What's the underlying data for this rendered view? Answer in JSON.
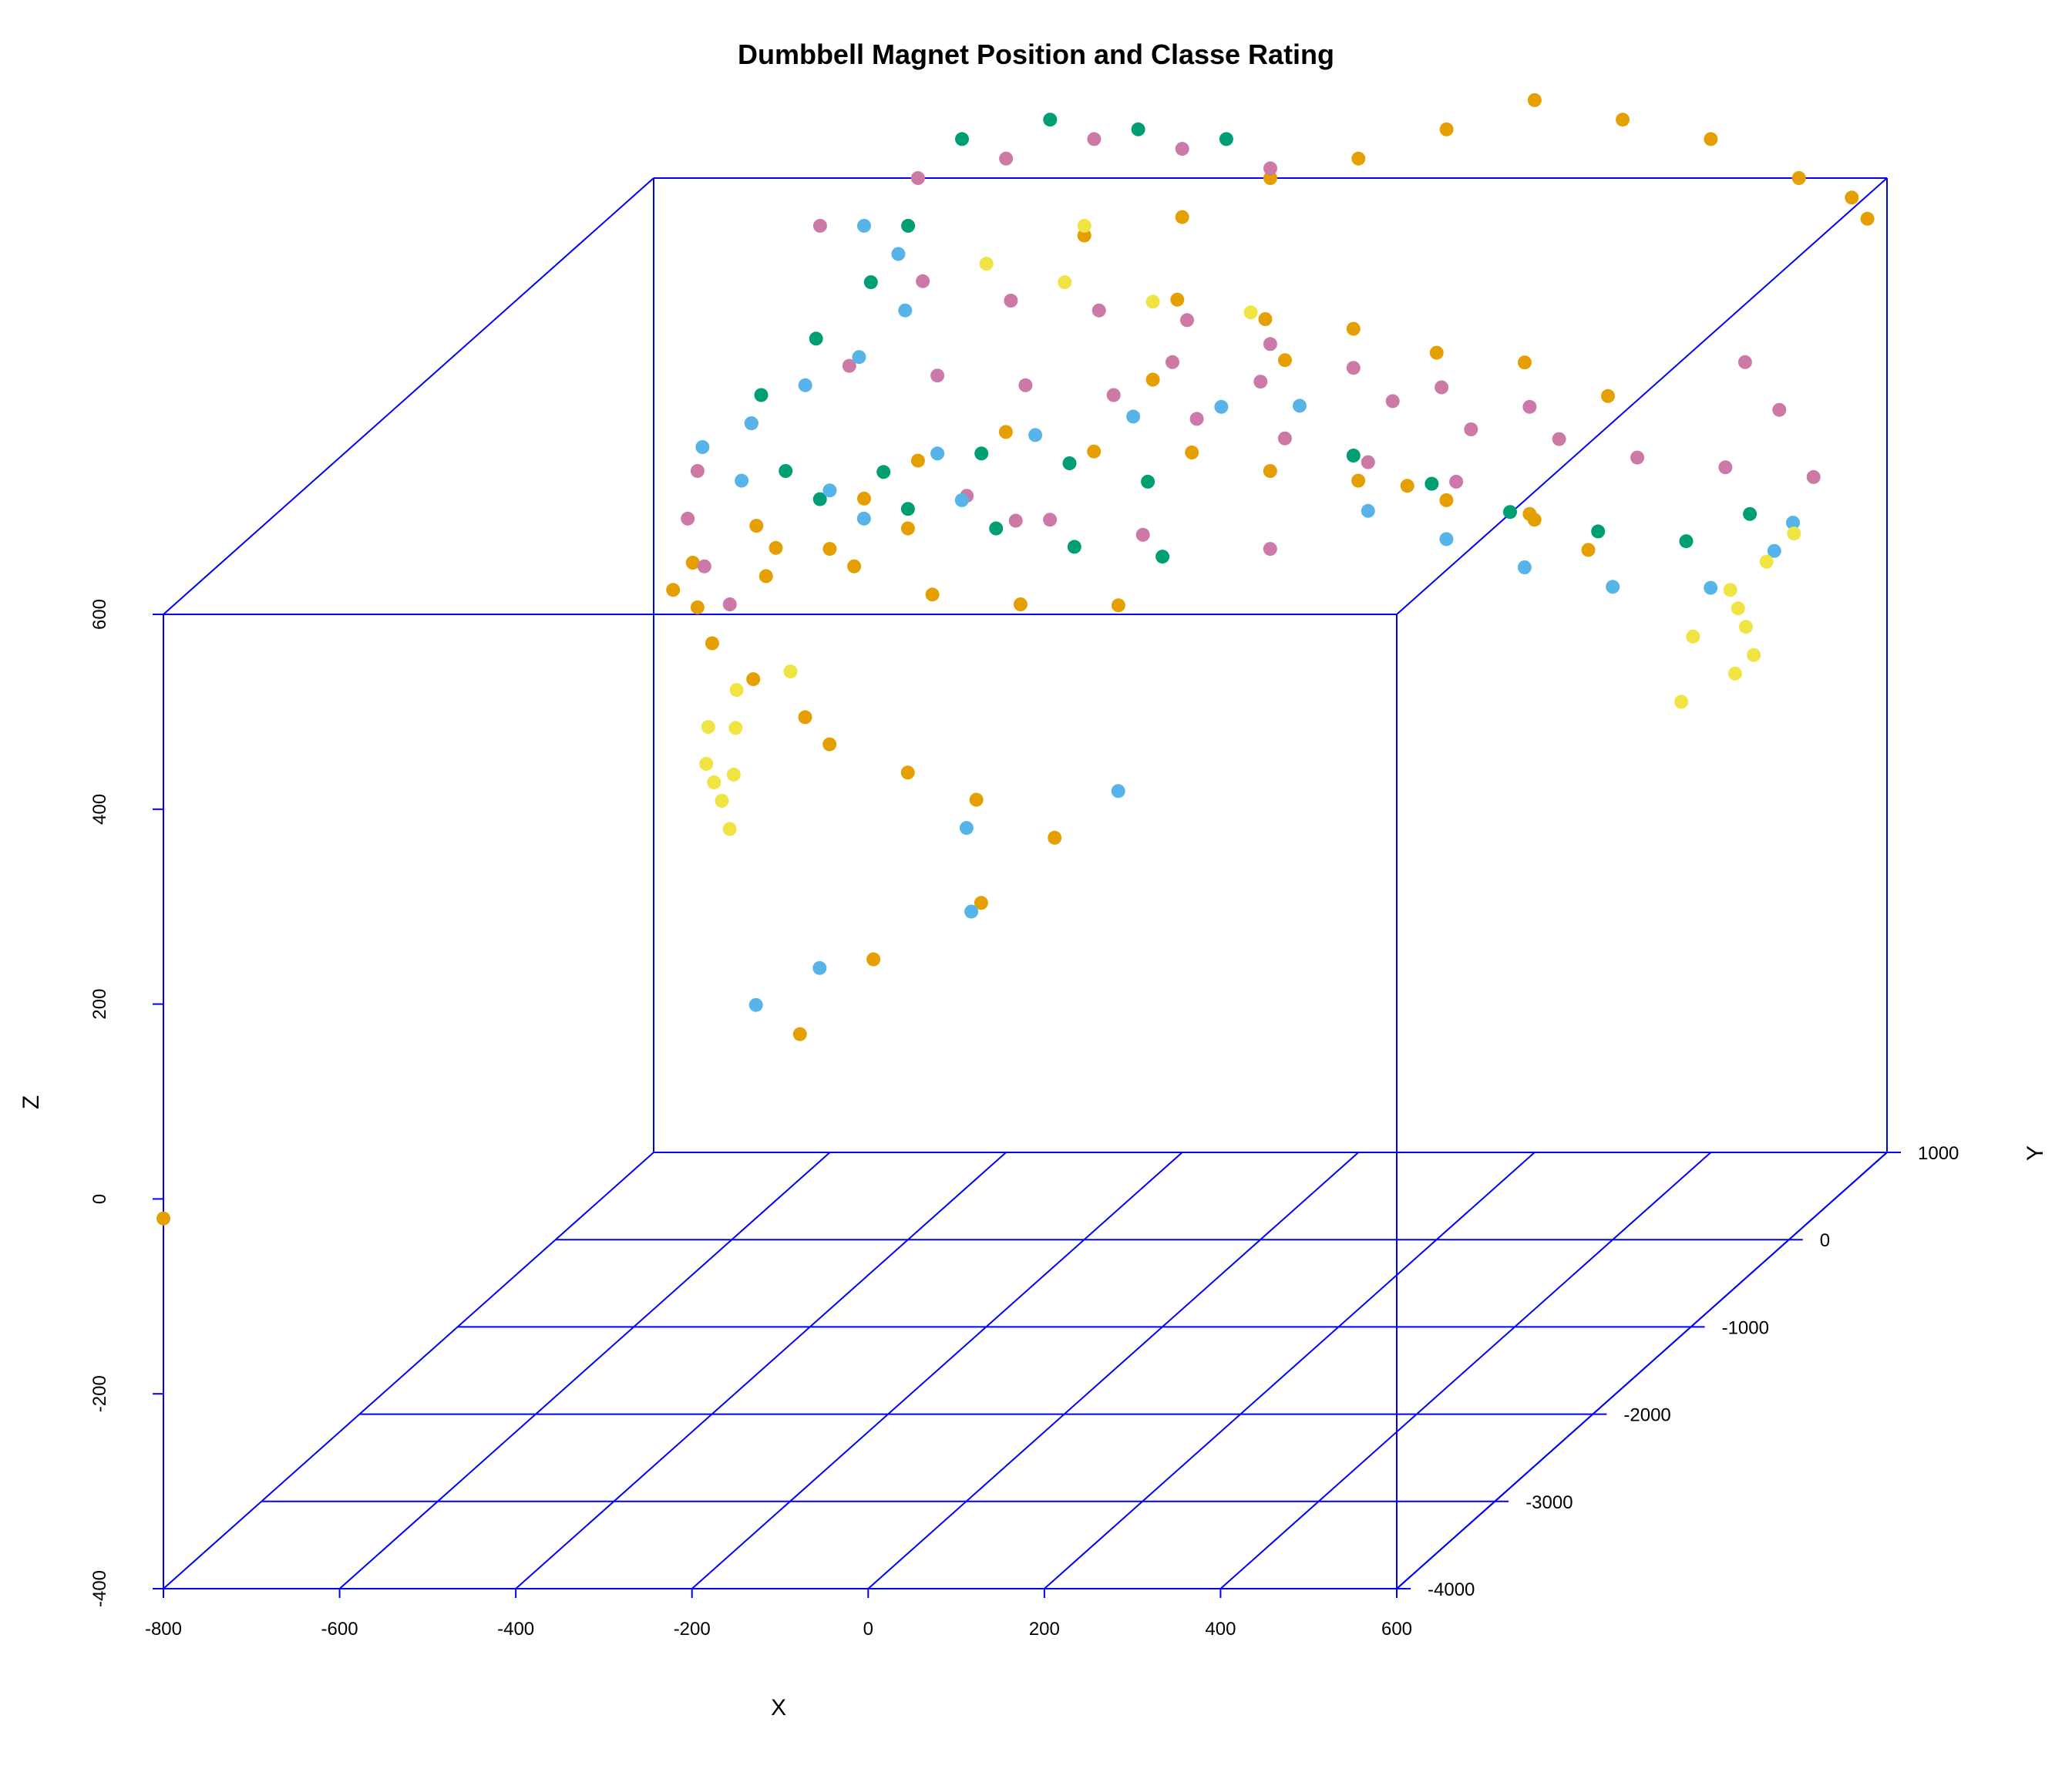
{
  "chart_data": {
    "type": "scatter",
    "title": "Dumbbell Magnet Position and Classe Rating",
    "xlabel": "X",
    "ylabel": "Y",
    "zlabel": "Z",
    "projection": "3d",
    "box_color": "#0000ff",
    "xlim": [
      -800,
      600
    ],
    "ylim": [
      -4000,
      1000
    ],
    "zlim": [
      -400,
      600
    ],
    "x_ticks": [
      "-800",
      "-600",
      "-400",
      "-200",
      "0",
      "200",
      "400",
      "600"
    ],
    "y_ticks": [
      "1000",
      "0",
      "-1000",
      "-2000",
      "-3000",
      "-4000"
    ],
    "z_ticks": [
      "600",
      "400",
      "200",
      "0",
      "-200",
      "-400"
    ],
    "series": [
      {
        "color": "#E69F00",
        "points": [
          [
            -100,
            1000,
            600
          ],
          [
            0,
            1000,
            620
          ],
          [
            100,
            1000,
            650
          ],
          [
            200,
            1000,
            680
          ],
          [
            300,
            1000,
            660
          ],
          [
            400,
            1000,
            640
          ],
          [
            500,
            1000,
            600
          ],
          [
            560,
            1000,
            580
          ],
          [
            580,
            980,
            560
          ],
          [
            -200,
            1000,
            560
          ],
          [
            -300,
            900,
            550
          ],
          [
            -150,
            500,
            520
          ],
          [
            -50,
            500,
            500
          ],
          [
            50,
            500,
            490
          ],
          [
            150,
            450,
            470
          ],
          [
            250,
            450,
            460
          ],
          [
            350,
            400,
            430
          ],
          [
            -300,
            100,
            420
          ],
          [
            -200,
            100,
            400
          ],
          [
            -100,
            200,
            390
          ],
          [
            0,
            100,
            380
          ],
          [
            100,
            100,
            370
          ],
          [
            200,
            100,
            350
          ],
          [
            300,
            100,
            330
          ],
          [
            -400,
            0,
            330
          ],
          [
            -500,
            100,
            300
          ],
          [
            -550,
            0,
            310
          ],
          [
            -550,
            -100,
            290
          ],
          [
            -450,
            -100,
            300
          ],
          [
            -350,
            -200,
            280
          ],
          [
            -250,
            -200,
            270
          ],
          [
            -150,
            -100,
            260
          ],
          [
            -500,
            1000,
            310
          ],
          [
            -550,
            900,
            280
          ],
          [
            -650,
            700,
            270
          ],
          [
            -700,
            500,
            250
          ],
          [
            -700,
            300,
            240
          ],
          [
            -650,
            100,
            240
          ],
          [
            -600,
            -200,
            230
          ],
          [
            -520,
            -500,
            220
          ],
          [
            -450,
            -600,
            190
          ],
          [
            -400,
            -800,
            180
          ],
          [
            -300,
            -900,
            160
          ],
          [
            -200,
            -1100,
            150
          ],
          [
            -100,
            -1200,
            120
          ],
          [
            -150,
            -1500,
            80
          ],
          [
            -250,
            -1700,
            40
          ],
          [
            -300,
            -2000,
            -10
          ],
          [
            100,
            600,
            320
          ],
          [
            250,
            500,
            300
          ],
          [
            350,
            200,
            290
          ],
          [
            -200,
            700,
            420
          ],
          [
            -50,
            700,
            440
          ],
          [
            -800,
            -4000,
            -20
          ]
        ]
      },
      {
        "color": "#CC79A7",
        "points": [
          [
            -500,
            1000,
            600
          ],
          [
            -400,
            1000,
            620
          ],
          [
            -300,
            1000,
            640
          ],
          [
            -200,
            1000,
            630
          ],
          [
            -100,
            1000,
            610
          ],
          [
            -600,
            900,
            560
          ],
          [
            -450,
            600,
            530
          ],
          [
            -350,
            600,
            510
          ],
          [
            -250,
            600,
            500
          ],
          [
            -150,
            600,
            490
          ],
          [
            -50,
            550,
            470
          ],
          [
            50,
            500,
            450
          ],
          [
            150,
            500,
            430
          ],
          [
            250,
            500,
            410
          ],
          [
            -500,
            300,
            470
          ],
          [
            -400,
            300,
            460
          ],
          [
            -300,
            300,
            450
          ],
          [
            -200,
            300,
            440
          ],
          [
            -100,
            250,
            420
          ],
          [
            0,
            250,
            400
          ],
          [
            100,
            200,
            380
          ],
          [
            200,
            200,
            360
          ],
          [
            -600,
            200,
            420
          ],
          [
            -650,
            100,
            380
          ],
          [
            -650,
            0,
            340
          ],
          [
            -620,
            -100,
            300
          ],
          [
            -580,
            -200,
            270
          ],
          [
            -200,
            900,
            420
          ],
          [
            -100,
            900,
            400
          ],
          [
            50,
            900,
            380
          ],
          [
            150,
            800,
            360
          ],
          [
            250,
            800,
            350
          ],
          [
            350,
            700,
            340
          ],
          [
            450,
            700,
            330
          ],
          [
            550,
            700,
            320
          ],
          [
            500,
            800,
            380
          ],
          [
            450,
            900,
            420
          ],
          [
            -300,
            200,
            320
          ],
          [
            -150,
            150,
            310
          ],
          [
            0,
            100,
            300
          ],
          [
            -350,
            150,
            350
          ],
          [
            -250,
            100,
            330
          ]
        ]
      },
      {
        "color": "#009E73",
        "points": [
          [
            -450,
            1000,
            640
          ],
          [
            -350,
            1000,
            660
          ],
          [
            -250,
            1000,
            650
          ],
          [
            -150,
            1000,
            640
          ],
          [
            -500,
            900,
            560
          ],
          [
            -520,
            700,
            520
          ],
          [
            -560,
            500,
            480
          ],
          [
            -600,
            300,
            440
          ],
          [
            -550,
            100,
            380
          ],
          [
            -500,
            0,
            360
          ],
          [
            -400,
            0,
            350
          ],
          [
            -300,
            0,
            330
          ],
          [
            -200,
            -100,
            320
          ],
          [
            -100,
            -100,
            310
          ],
          [
            -450,
            200,
            370
          ],
          [
            -350,
            300,
            380
          ],
          [
            -250,
            300,
            370
          ],
          [
            -150,
            200,
            360
          ],
          [
            50,
            500,
            360
          ],
          [
            150,
            400,
            340
          ],
          [
            250,
            300,
            320
          ],
          [
            350,
            300,
            300
          ],
          [
            450,
            300,
            290
          ],
          [
            500,
            500,
            300
          ]
        ]
      },
      {
        "color": "#56B4E9",
        "points": [
          [
            -550,
            900,
            560
          ],
          [
            -500,
            800,
            540
          ],
          [
            -470,
            600,
            500
          ],
          [
            -500,
            400,
            470
          ],
          [
            -550,
            300,
            450
          ],
          [
            -600,
            200,
            420
          ],
          [
            -650,
            150,
            400
          ],
          [
            -600,
            100,
            370
          ],
          [
            -500,
            100,
            360
          ],
          [
            -450,
            0,
            340
          ],
          [
            -350,
            100,
            350
          ],
          [
            -400,
            300,
            380
          ],
          [
            -300,
            400,
            390
          ],
          [
            -200,
            500,
            400
          ],
          [
            -100,
            500,
            410
          ],
          [
            0,
            400,
            420
          ],
          [
            100,
            200,
            330
          ],
          [
            200,
            100,
            310
          ],
          [
            300,
            0,
            290
          ],
          [
            400,
            0,
            270
          ],
          [
            500,
            100,
            260
          ],
          [
            550,
            300,
            280
          ],
          [
            560,
            400,
            300
          ],
          [
            -200,
            -1200,
            130
          ],
          [
            -300,
            -1800,
            40
          ],
          [
            -350,
            -2000,
            20
          ],
          [
            -150,
            -1600,
            80
          ],
          [
            -50,
            -1000,
            150
          ]
        ]
      },
      {
        "color": "#F0E442",
        "points": [
          [
            -400,
            800,
            530
          ],
          [
            -300,
            700,
            520
          ],
          [
            -200,
            700,
            500
          ],
          [
            -100,
            800,
            480
          ],
          [
            -300,
            900,
            560
          ],
          [
            -550,
            -400,
            200
          ],
          [
            -560,
            -600,
            180
          ],
          [
            -540,
            -800,
            160
          ],
          [
            -520,
            -900,
            150
          ],
          [
            -500,
            -1000,
            140
          ],
          [
            -480,
            -1100,
            120
          ],
          [
            -520,
            -700,
            140
          ],
          [
            -540,
            -500,
            170
          ],
          [
            -500,
            -300,
            210
          ],
          [
            500,
            300,
            240
          ],
          [
            520,
            200,
            230
          ],
          [
            540,
            100,
            220
          ],
          [
            560,
            0,
            200
          ],
          [
            550,
            -100,
            190
          ],
          [
            530,
            400,
            260
          ],
          [
            550,
            500,
            280
          ],
          [
            480,
            100,
            210
          ],
          [
            500,
            -200,
            170
          ]
        ]
      }
    ]
  }
}
